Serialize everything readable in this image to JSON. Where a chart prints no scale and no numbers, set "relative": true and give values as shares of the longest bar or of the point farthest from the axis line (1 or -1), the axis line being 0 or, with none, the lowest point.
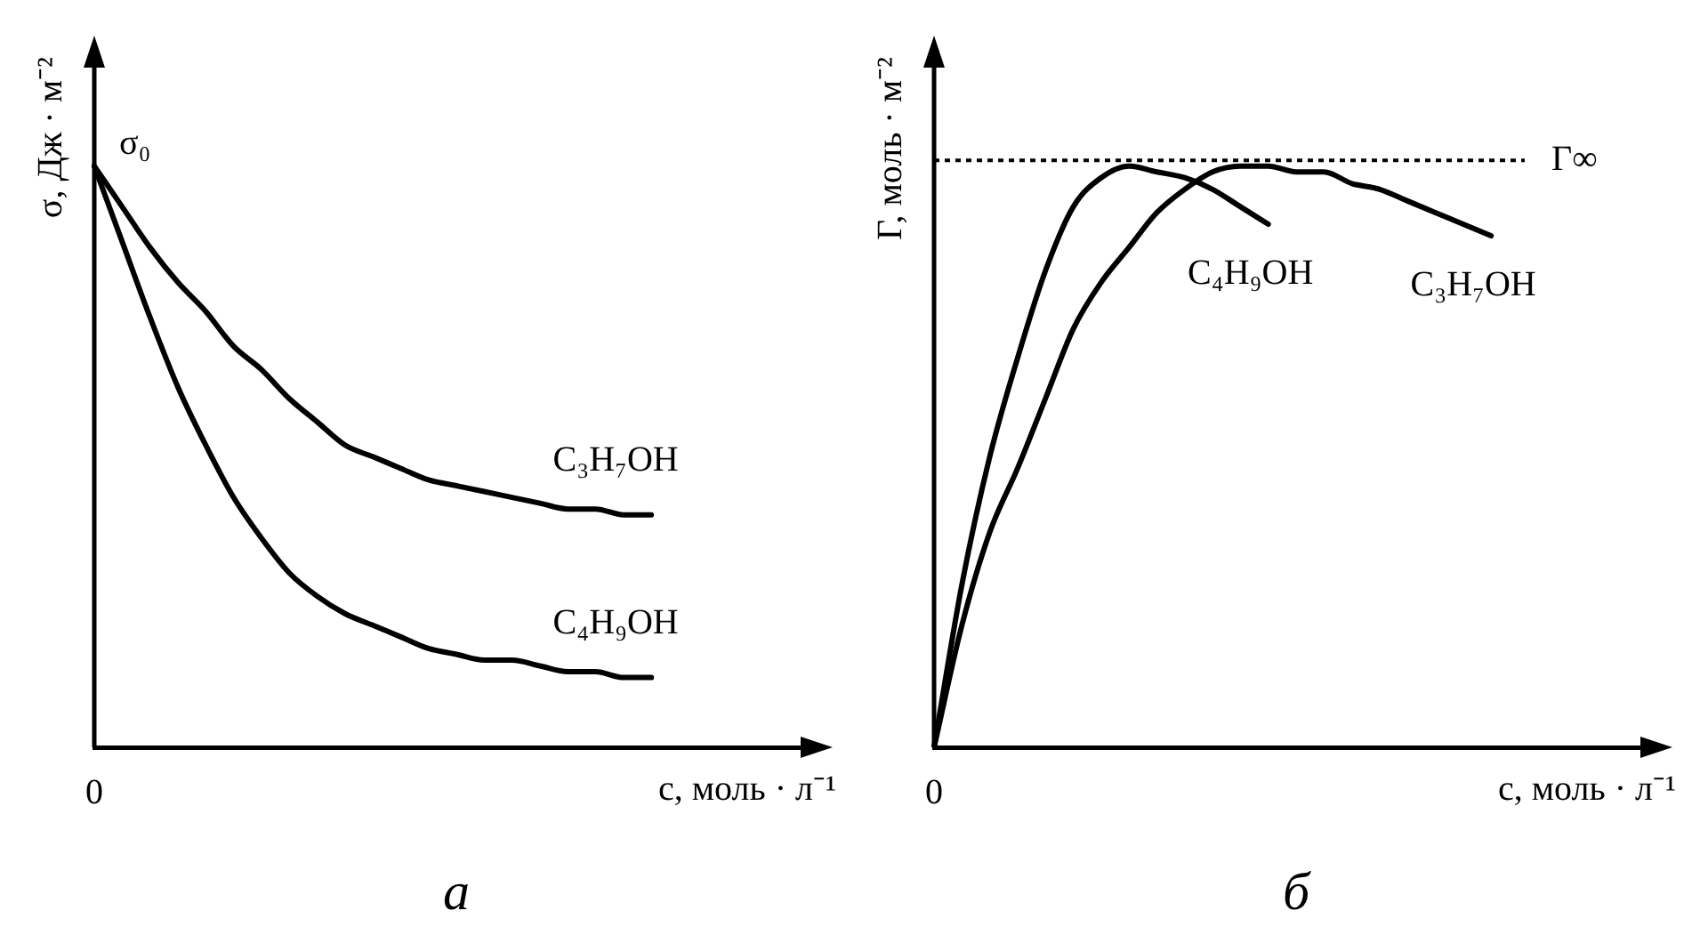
{
  "chart_data": [
    {
      "type": "line",
      "relative": true,
      "ylabel": "σ, Дж · м⁻²",
      "xlabel": "c, моль · л⁻¹",
      "legend": false,
      "grid": false,
      "marker": "none",
      "tick_labels": "x",
      "categories": [
        null,
        null,
        null,
        null,
        null,
        null,
        null,
        null,
        null,
        null,
        null,
        null,
        null,
        null,
        null,
        null,
        null,
        null,
        null,
        null,
        null,
        null,
        null,
        null,
        null,
        null,
        null
      ],
      "series": [
        {
          "name": "C₃H₇OH",
          "color": "#000000",
          "values": [
            1.0,
            0.93,
            0.86,
            0.8,
            0.75,
            0.69,
            0.65,
            0.6,
            0.56,
            0.52,
            0.5,
            0.48,
            0.46,
            0.45,
            0.44,
            0.43,
            0.42,
            0.41,
            0.41,
            0.4,
            0.4,
            null,
            null,
            null,
            null,
            null,
            null
          ]
        },
        {
          "name": "C₄H₉OH",
          "color": "#000000",
          "values": [
            1.0,
            0.87,
            0.74,
            0.62,
            0.52,
            0.43,
            0.36,
            0.3,
            0.26,
            0.23,
            0.21,
            0.19,
            0.17,
            0.16,
            0.15,
            0.15,
            0.14,
            0.13,
            0.13,
            0.12,
            0.12,
            null,
            null,
            null,
            null,
            null,
            null
          ]
        }
      ],
      "annotations": [
        "σ₀",
        "0",
        "а"
      ]
    },
    {
      "type": "line",
      "relative": true,
      "ylabel": "Γ, моль · м⁻²",
      "xlabel": "c, моль · л⁻¹",
      "legend": false,
      "grid": false,
      "marker": "none",
      "tick_labels": "x",
      "categories": [
        null,
        null,
        null,
        null,
        null,
        null,
        null,
        null,
        null,
        null,
        null,
        null,
        null,
        null,
        null,
        null,
        null,
        null,
        null,
        null,
        null,
        null,
        null,
        null,
        null,
        null,
        null
      ],
      "series": [
        {
          "name": "C₄H₉OH",
          "color": "#000000",
          "values": [
            0,
            0.28,
            0.5,
            0.67,
            0.82,
            0.93,
            0.98,
            1.0,
            0.99,
            0.98,
            0.96,
            0.93,
            0.9,
            null,
            null,
            null,
            null,
            null,
            null,
            null,
            null,
            null,
            null,
            null,
            null,
            null,
            null
          ]
        },
        {
          "name": "C₃H₇OH",
          "color": "#000000",
          "values": [
            0,
            0.21,
            0.37,
            0.48,
            0.6,
            0.72,
            0.8,
            0.86,
            0.92,
            0.96,
            0.99,
            1.0,
            1.0,
            0.99,
            0.99,
            0.97,
            0.96,
            0.94,
            0.92,
            0.9,
            0.88,
            null,
            null,
            null,
            null,
            null,
            null
          ]
        }
      ],
      "ref_lines": [
        {
          "axis": "y",
          "value": 1.01,
          "label": "Γ∞",
          "line_style": "dotted",
          "color": "#000000"
        }
      ],
      "annotations": [
        "0",
        "б"
      ]
    }
  ]
}
